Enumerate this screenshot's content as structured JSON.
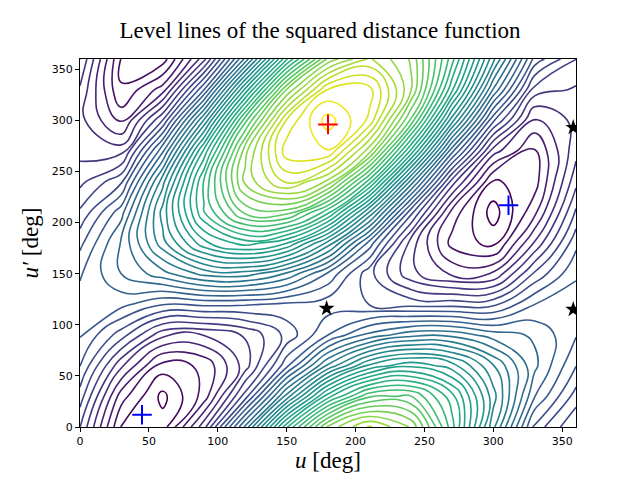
{
  "chart_data": {
    "type": "contour",
    "title": "Level lines of the squared distance function",
    "x_label": "u [deg]",
    "y_label": "u′ [deg]",
    "xlim": [
      0,
      360
    ],
    "ylim": [
      0,
      360
    ],
    "xticks": [
      0,
      50,
      100,
      150,
      200,
      250,
      300,
      350
    ],
    "yticks": [
      0,
      50,
      100,
      150,
      200,
      250,
      300,
      350
    ],
    "grid": false,
    "x": [
      0,
      30,
      60,
      90,
      120,
      150,
      180,
      210,
      240,
      270,
      300,
      330,
      360
    ],
    "y": [
      0,
      30,
      60,
      90,
      120,
      150,
      180,
      210,
      240,
      270,
      300,
      330,
      360
    ],
    "z": [
      [
        1.91,
        0.39,
        0.28,
        1.56,
        3.72,
        6.1,
        7.94,
        8.66,
        8.1,
        6.49,
        4.46,
        2.56,
        1.91
      ],
      [
        2.29,
        0.77,
        0.09,
        0.76,
        2.28,
        4.25,
        6.04,
        7.09,
        7.15,
        6.24,
        4.75,
        3.16,
        2.29
      ],
      [
        2.66,
        1.46,
        0.54,
        0.71,
        1.53,
        2.83,
        4.2,
        5.2,
        5.58,
        5.26,
        4.41,
        3.46,
        2.66
      ],
      [
        2.92,
        2.27,
        1.48,
        1.42,
        1.68,
        2.23,
        2.9,
        3.48,
        3.81,
        3.82,
        3.52,
        3.36,
        2.92
      ],
      [
        3.0,
        2.98,
        2.67,
        2.71,
        2.68,
        2.6,
        2.51,
        2.4,
        2.31,
        2.3,
        2.34,
        2.9,
        3.0
      ],
      [
        2.87,
        3.4,
        3.8,
        4.23,
        4.27,
        3.86,
        3.11,
        2.24,
        1.48,
        1.11,
        1.17,
        2.2,
        2.87
      ],
      [
        2.58,
        3.43,
        4.55,
        5.57,
        6.01,
        5.65,
        4.56,
        3.05,
        1.55,
        0.57,
        0.33,
        1.44,
        2.58
      ],
      [
        2.2,
        3.05,
        4.74,
        6.37,
        7.45,
        7.51,
        6.46,
        4.62,
        2.5,
        0.82,
        0.04,
        0.84,
        2.2
      ],
      [
        1.83,
        2.36,
        4.3,
        6.42,
        8.2,
        8.92,
        8.31,
        6.51,
        4.07,
        1.79,
        0.38,
        0.54,
        1.83
      ],
      [
        1.57,
        1.55,
        3.35,
        5.71,
        8.05,
        9.52,
        9.6,
        8.23,
        5.84,
        3.23,
        1.27,
        0.64,
        1.57
      ],
      [
        1.49,
        0.84,
        2.16,
        4.42,
        7.05,
        9.15,
        9.99,
        9.31,
        7.34,
        4.75,
        2.45,
        1.1,
        1.49
      ],
      [
        1.62,
        0.42,
        1.03,
        2.9,
        5.46,
        7.89,
        9.39,
        9.47,
        8.17,
        5.94,
        3.62,
        1.8,
        1.62
      ],
      [
        1.91,
        0.39,
        0.28,
        1.56,
        3.72,
        6.1,
        7.94,
        8.66,
        8.1,
        6.49,
        4.46,
        2.56,
        1.91
      ]
    ],
    "series": [
      {
        "type": "scatter",
        "marker": "plus",
        "color": "#ff0000",
        "x": [
          180
        ],
        "y": [
          296
        ]
      },
      {
        "type": "scatter",
        "marker": "plus",
        "color": "#0000ff",
        "x": [
          45,
          311
        ],
        "y": [
          12,
          217
        ]
      },
      {
        "type": "scatter",
        "marker": "star",
        "color": "#000000",
        "x": [
          179,
          358,
          358
        ],
        "y": [
          116,
          293,
          115
        ]
      }
    ]
  }
}
